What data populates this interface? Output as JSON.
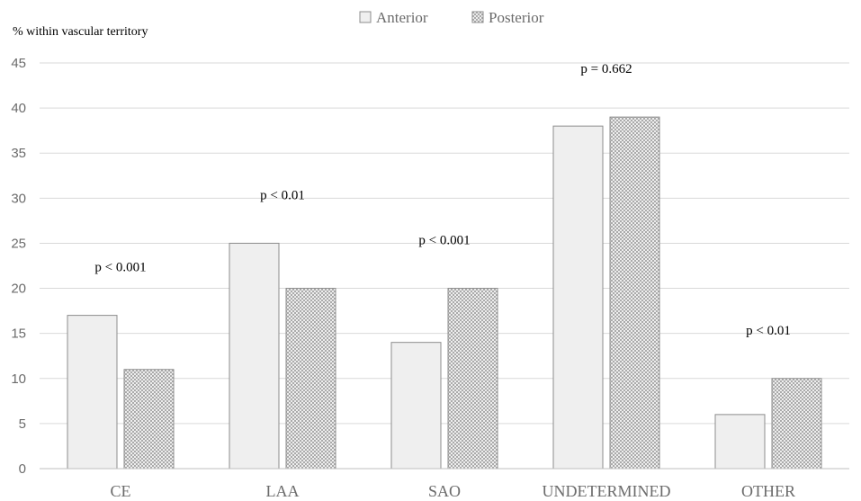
{
  "chart_data": {
    "type": "bar",
    "ylabel": "% within vascular territory",
    "ylim": [
      0,
      45
    ],
    "yticks": [
      "0",
      "5",
      "10",
      "15",
      "20",
      "25",
      "30",
      "35",
      "40",
      "45"
    ],
    "grid": true,
    "legend_position": "top-center",
    "categories": [
      "CE",
      "LAA",
      "SAO",
      "UNDETERMINED",
      "OTHER"
    ],
    "series": [
      {
        "name": "Anterior",
        "values": [
          17,
          25,
          14,
          38,
          6
        ],
        "color": "#efefef",
        "pattern": "solid"
      },
      {
        "name": "Posterior",
        "values": [
          11,
          20,
          20,
          39,
          10
        ],
        "color": "#ffffff",
        "pattern": "crosshatch"
      }
    ],
    "annotations": [
      "p < 0.001",
      "p < 0.01",
      "p < 0.001",
      "p = 0.662",
      "p < 0.01"
    ]
  }
}
